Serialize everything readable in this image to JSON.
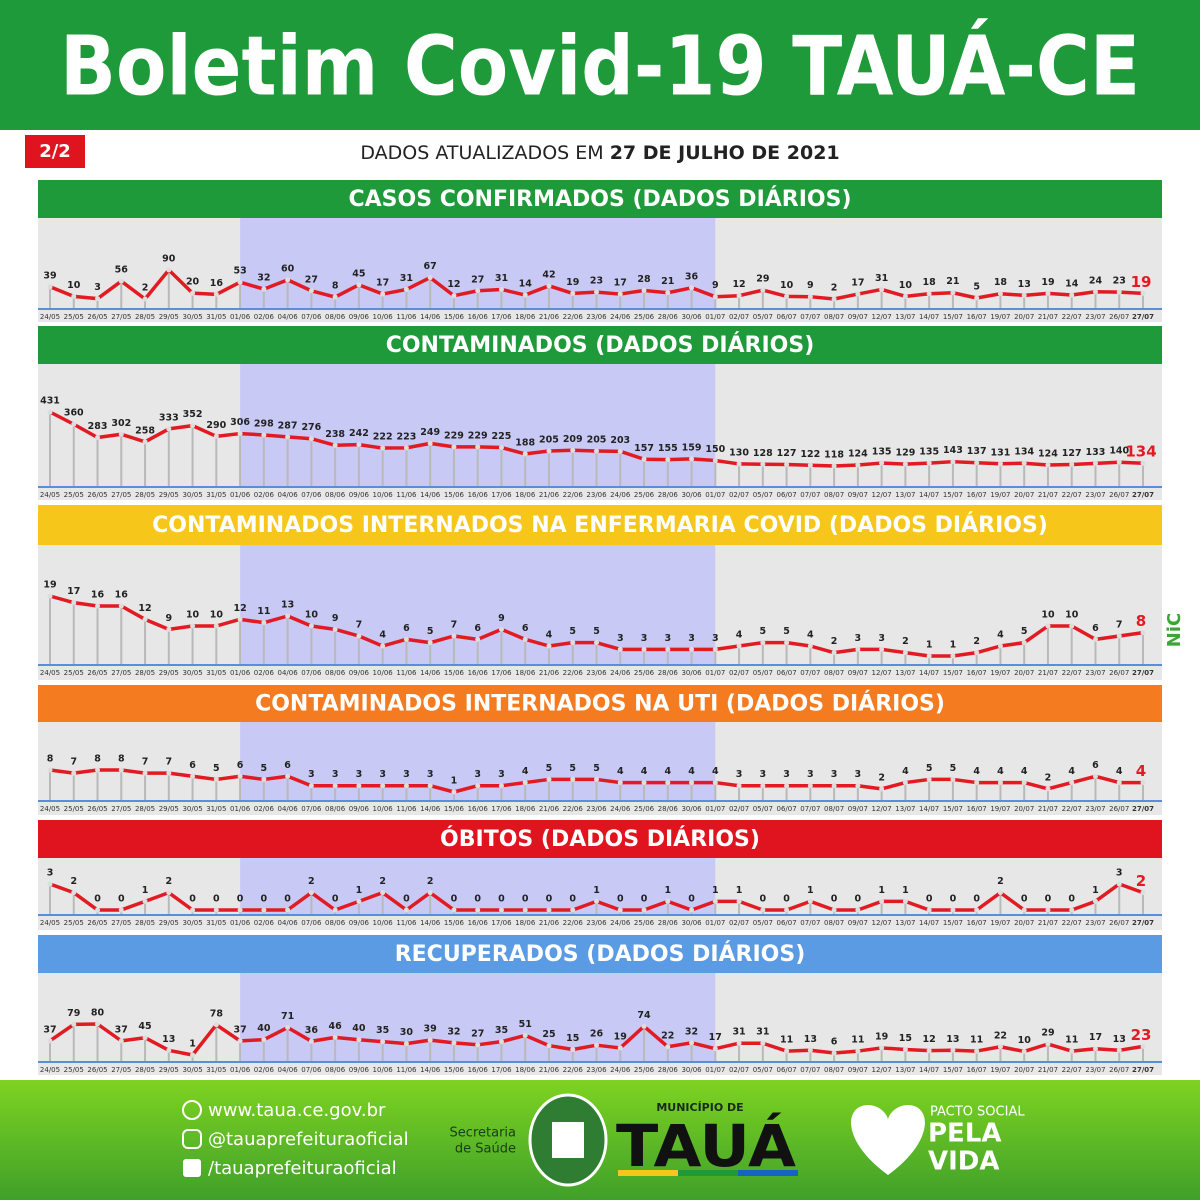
{
  "header": {
    "title": "Boletim Covid-19 TAUÁ-CE",
    "page": "2/2",
    "updated_prefix": "DADOS ATUALIZADOS EM",
    "updated_date": "27 DE JULHO DE 2021",
    "side_logo": "NiC"
  },
  "chart_data": [
    {
      "type": "line",
      "title": "CASOS CONFIRMADOS  (DADOS DIÁRIOS)",
      "header_color": "#1f9a3b",
      "color": "#e21b23",
      "categories": [
        "24/05",
        "25/05",
        "26/05",
        "27/05",
        "28/05",
        "29/05",
        "30/05",
        "31/05",
        "01/06",
        "02/06",
        "04/06",
        "07/06",
        "08/06",
        "09/06",
        "10/06",
        "11/06",
        "14/06",
        "15/06",
        "16/06",
        "17/06",
        "18/06",
        "21/06",
        "22/06",
        "23/06",
        "24/06",
        "25/06",
        "28/06",
        "30/06",
        "01/07",
        "02/07",
        "05/07",
        "06/07",
        "07/07",
        "08/07",
        "09/07",
        "12/07",
        "13/07",
        "14/07",
        "15/07",
        "16/07",
        "19/07",
        "20/07",
        "21/07",
        "22/07",
        "23/07",
        "26/07",
        "27/07"
      ],
      "values": [
        39,
        10,
        3,
        56,
        2,
        90,
        20,
        16,
        53,
        32,
        60,
        27,
        8,
        45,
        17,
        31,
        67,
        12,
        27,
        31,
        14,
        42,
        19,
        23,
        17,
        28,
        21,
        36,
        9,
        12,
        29,
        10,
        9,
        2,
        17,
        31,
        10,
        18,
        21,
        5,
        18,
        13,
        19,
        14,
        24,
        23,
        19
      ]
    },
    {
      "type": "line",
      "title": "CONTAMINADOS  (DADOS DIÁRIOS)",
      "header_color": "#1f9a3b",
      "color": "#e21b23",
      "categories": [
        "24/05",
        "25/05",
        "26/05",
        "27/05",
        "28/05",
        "29/05",
        "30/05",
        "31/05",
        "01/06",
        "02/06",
        "04/06",
        "07/06",
        "08/06",
        "09/06",
        "10/06",
        "11/06",
        "14/06",
        "15/06",
        "16/06",
        "17/06",
        "18/06",
        "21/06",
        "22/06",
        "23/06",
        "24/06",
        "25/06",
        "28/06",
        "30/06",
        "01/07",
        "02/07",
        "05/07",
        "06/07",
        "07/07",
        "08/07",
        "09/07",
        "12/07",
        "13/07",
        "14/07",
        "15/07",
        "16/07",
        "19/07",
        "20/07",
        "21/07",
        "22/07",
        "23/07",
        "26/07",
        "27/07"
      ],
      "values": [
        431,
        360,
        283,
        302,
        258,
        333,
        352,
        290,
        306,
        298,
        287,
        276,
        238,
        242,
        222,
        223,
        249,
        229,
        229,
        225,
        188,
        205,
        209,
        205,
        203,
        157,
        155,
        159,
        150,
        130,
        128,
        127,
        122,
        118,
        124,
        135,
        129,
        135,
        143,
        137,
        131,
        134,
        124,
        127,
        133,
        140,
        134
      ]
    },
    {
      "type": "line",
      "title": "CONTAMINADOS INTERNADOS NA ENFERMARIA COVID  (DADOS DIÁRIOS)",
      "header_color": "#f6c61a",
      "color": "#e21b23",
      "categories": [
        "24/05",
        "25/05",
        "26/05",
        "27/05",
        "28/05",
        "29/05",
        "30/05",
        "31/05",
        "01/06",
        "02/06",
        "04/06",
        "07/06",
        "08/06",
        "09/06",
        "10/06",
        "11/06",
        "14/06",
        "15/06",
        "16/06",
        "17/06",
        "18/06",
        "21/06",
        "22/06",
        "23/06",
        "24/06",
        "25/06",
        "28/06",
        "30/06",
        "01/07",
        "02/07",
        "05/07",
        "06/07",
        "07/07",
        "08/07",
        "09/07",
        "12/07",
        "13/07",
        "14/07",
        "15/07",
        "16/07",
        "19/07",
        "20/07",
        "21/07",
        "22/07",
        "23/07",
        "26/07",
        "27/07"
      ],
      "values": [
        19,
        17,
        16,
        16,
        12,
        9,
        10,
        10,
        12,
        11,
        13,
        10,
        9,
        7,
        4,
        6,
        5,
        7,
        6,
        9,
        6,
        4,
        5,
        5,
        3,
        3,
        3,
        3,
        3,
        4,
        5,
        5,
        4,
        2,
        3,
        3,
        2,
        1,
        1,
        2,
        4,
        5,
        10,
        10,
        6,
        7,
        8
      ]
    },
    {
      "type": "line",
      "title": "CONTAMINADOS INTERNADOS NA UTI  (DADOS DIÁRIOS)",
      "header_color": "#f47b20",
      "color": "#e21b23",
      "categories": [
        "24/05",
        "25/05",
        "26/05",
        "27/05",
        "28/05",
        "29/05",
        "30/05",
        "31/05",
        "01/06",
        "02/06",
        "04/06",
        "07/06",
        "08/06",
        "09/06",
        "10/06",
        "11/06",
        "14/06",
        "15/06",
        "16/06",
        "17/06",
        "18/06",
        "21/06",
        "22/06",
        "23/06",
        "24/06",
        "25/06",
        "28/06",
        "30/06",
        "01/07",
        "02/07",
        "05/07",
        "06/07",
        "07/07",
        "08/07",
        "09/07",
        "12/07",
        "13/07",
        "14/07",
        "15/07",
        "16/07",
        "19/07",
        "20/07",
        "21/07",
        "22/07",
        "23/07",
        "26/07",
        "27/07"
      ],
      "values": [
        8,
        7,
        8,
        8,
        7,
        7,
        6,
        5,
        6,
        5,
        6,
        3,
        3,
        3,
        3,
        3,
        3,
        1,
        3,
        3,
        4,
        5,
        5,
        5,
        4,
        4,
        4,
        4,
        4,
        3,
        3,
        3,
        3,
        3,
        3,
        2,
        4,
        5,
        5,
        4,
        4,
        4,
        2,
        4,
        6,
        4,
        4
      ]
    },
    {
      "type": "line",
      "title": "ÓBITOS  (DADOS DIÁRIOS)",
      "header_color": "#e0141e",
      "color": "#e21b23",
      "categories": [
        "24/05",
        "25/05",
        "26/05",
        "27/05",
        "28/05",
        "29/05",
        "30/05",
        "31/05",
        "01/06",
        "02/06",
        "04/06",
        "07/06",
        "08/06",
        "09/06",
        "10/06",
        "11/06",
        "14/06",
        "15/06",
        "16/06",
        "17/06",
        "18/06",
        "21/06",
        "22/06",
        "23/06",
        "24/06",
        "25/06",
        "28/06",
        "30/06",
        "01/07",
        "02/07",
        "05/07",
        "06/07",
        "07/07",
        "08/07",
        "09/07",
        "12/07",
        "13/07",
        "14/07",
        "15/07",
        "16/07",
        "19/07",
        "20/07",
        "21/07",
        "22/07",
        "23/07",
        "26/07",
        "27/07"
      ],
      "values": [
        3,
        2,
        0,
        0,
        1,
        2,
        0,
        0,
        0,
        0,
        0,
        2,
        0,
        1,
        2,
        0,
        2,
        0,
        0,
        0,
        0,
        0,
        0,
        1,
        0,
        0,
        1,
        0,
        1,
        1,
        0,
        0,
        1,
        0,
        0,
        1,
        1,
        0,
        0,
        0,
        2,
        0,
        0,
        0,
        1,
        3,
        2
      ]
    },
    {
      "type": "line",
      "title": "RECUPERADOS (DADOS DIÁRIOS)",
      "header_color": "#5b9be3",
      "color": "#e21b23",
      "categories": [
        "24/05",
        "25/05",
        "26/05",
        "27/05",
        "28/05",
        "29/05",
        "30/05",
        "31/05",
        "01/06",
        "02/06",
        "04/06",
        "07/06",
        "08/06",
        "09/06",
        "10/06",
        "11/06",
        "14/06",
        "15/06",
        "16/06",
        "17/06",
        "18/06",
        "21/06",
        "22/06",
        "23/06",
        "24/06",
        "25/06",
        "28/06",
        "30/06",
        "01/07",
        "02/07",
        "05/07",
        "06/07",
        "07/07",
        "08/07",
        "09/07",
        "12/07",
        "13/07",
        "14/07",
        "15/07",
        "16/07",
        "19/07",
        "20/07",
        "21/07",
        "22/07",
        "23/07",
        "26/07",
        "27/07"
      ],
      "values": [
        37,
        79,
        80,
        37,
        45,
        13,
        1,
        78,
        37,
        40,
        71,
        36,
        46,
        40,
        35,
        30,
        39,
        32,
        27,
        35,
        51,
        25,
        15,
        26,
        19,
        74,
        22,
        32,
        17,
        31,
        31,
        11,
        13,
        6,
        11,
        19,
        15,
        12,
        13,
        11,
        22,
        10,
        29,
        11,
        17,
        13,
        23
      ]
    }
  ],
  "footer": {
    "website": "www.taua.ce.gov.br",
    "instagram": "@tauaprefeituraoficial",
    "facebook": "/tauaprefeituraoficial",
    "secretaria_1": "Secretaria",
    "secretaria_2": "de Saúde",
    "municipio": "MUNICÍPIO DE",
    "city": "TAUÁ",
    "pacto": "PACTO SOCIAL",
    "pela_vida_1": "PELA",
    "pela_vida_2": "VIDA"
  }
}
